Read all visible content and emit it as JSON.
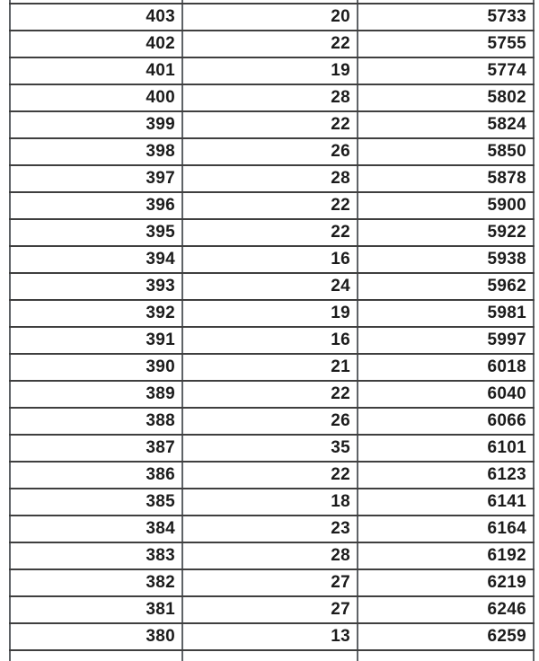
{
  "chart_data": {
    "type": "table",
    "columns": [
      "",
      "",
      ""
    ],
    "rows": [
      [
        403,
        20,
        5733
      ],
      [
        402,
        22,
        5755
      ],
      [
        401,
        19,
        5774
      ],
      [
        400,
        28,
        5802
      ],
      [
        399,
        22,
        5824
      ],
      [
        398,
        26,
        5850
      ],
      [
        397,
        28,
        5878
      ],
      [
        396,
        22,
        5900
      ],
      [
        395,
        22,
        5922
      ],
      [
        394,
        16,
        5938
      ],
      [
        393,
        24,
        5962
      ],
      [
        392,
        19,
        5981
      ],
      [
        391,
        16,
        5997
      ],
      [
        390,
        21,
        6018
      ],
      [
        389,
        22,
        6040
      ],
      [
        388,
        26,
        6066
      ],
      [
        387,
        35,
        6101
      ],
      [
        386,
        22,
        6123
      ],
      [
        385,
        18,
        6141
      ],
      [
        384,
        23,
        6164
      ],
      [
        383,
        28,
        6192
      ],
      [
        382,
        27,
        6219
      ],
      [
        381,
        27,
        6246
      ],
      [
        380,
        13,
        6259
      ]
    ],
    "title": "",
    "notes_layout": "three equal columns, right-aligned bold numerals, partial clipped rows at top and bottom"
  },
  "colors": {
    "background": "#ffffff",
    "text": "#1c1c1c",
    "border_horizontal": "#3f3f3f",
    "border_vertical": "#5f6367"
  }
}
